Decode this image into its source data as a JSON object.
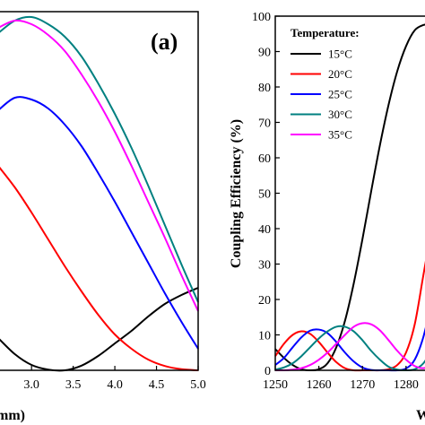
{
  "chart_data": [
    {
      "type": "line",
      "panel_label": "(a)",
      "xlabel": "mm)",
      "ylabel": "",
      "xlim": [
        2.6,
        5.0
      ],
      "ylim": [
        0,
        100
      ],
      "x_ticks": [
        "3.0",
        "3.5",
        "4.0",
        "4.5",
        "5.0"
      ],
      "x": [
        2.6,
        2.8,
        3.0,
        3.2,
        3.4,
        3.6,
        3.8,
        4.0,
        4.2,
        4.4,
        4.6,
        4.8,
        5.0
      ],
      "series": [
        {
          "color": "#000000",
          "values": [
            9,
            4.5,
            1.5,
            0.2,
            0,
            1.3,
            4,
            7.5,
            11,
            15,
            18.5,
            21,
            23
          ]
        },
        {
          "color": "#ff0000",
          "values": [
            57,
            51,
            44,
            36.5,
            29,
            22,
            15.5,
            10,
            6,
            3,
            1.2,
            0.3,
            0
          ]
        },
        {
          "color": "#0000ff",
          "values": [
            72.5,
            76,
            75.5,
            73,
            68.5,
            62.5,
            55,
            47,
            38.5,
            30,
            21.5,
            13.5,
            6
          ]
        },
        {
          "color": "#008080",
          "values": [
            94,
            97.5,
            98.5,
            96.5,
            93,
            87.5,
            80,
            71.5,
            62,
            51.5,
            40.5,
            29.5,
            19
          ]
        },
        {
          "color": "#ff00ff",
          "values": [
            95.5,
            97.5,
            96.5,
            93.5,
            89,
            82.5,
            75,
            66.5,
            57,
            47,
            37,
            26.5,
            16.5
          ]
        }
      ]
    },
    {
      "type": "line",
      "ylabel": "Coupling Efficiency (%)",
      "xlabel": "W",
      "xlim": [
        1250,
        1286
      ],
      "ylim": [
        0,
        100
      ],
      "x_ticks": [
        "1250",
        "1260",
        "1270",
        "1280"
      ],
      "y_ticks": [
        "0",
        "10",
        "20",
        "30",
        "40",
        "50",
        "60",
        "70",
        "80",
        "90",
        "100"
      ],
      "legend": {
        "title": "Temperature:",
        "placement": "top-right",
        "entries": [
          "15°C",
          "20°C",
          "25°C",
          "30°C",
          "35°C"
        ]
      },
      "series": [
        {
          "label": "15°C",
          "color": "#000000",
          "x": [
            1250,
            1252,
            1254,
            1256,
            1258,
            1260,
            1262,
            1264,
            1266,
            1268,
            1270,
            1272,
            1274,
            1276,
            1278,
            1280,
            1282,
            1284,
            1285,
            1286
          ],
          "values": [
            6,
            3.5,
            1.5,
            0.3,
            0,
            0.3,
            2,
            6.5,
            14,
            24.5,
            37,
            50.5,
            63.5,
            75,
            84.5,
            91.5,
            96,
            97.5,
            97.5,
            97
          ]
        },
        {
          "label": "20°C",
          "color": "#ff0000",
          "x": [
            1250,
            1252,
            1254,
            1256,
            1258,
            1260,
            1262,
            1264,
            1266,
            1268,
            1270,
            1272,
            1274,
            1276,
            1278,
            1280,
            1282,
            1284,
            1286
          ],
          "values": [
            4,
            7.5,
            10,
            11,
            10.3,
            8,
            5,
            2.3,
            0.6,
            0,
            0,
            0,
            0,
            0.3,
            1.5,
            5,
            13,
            27,
            41
          ]
        },
        {
          "label": "25°C",
          "color": "#0000ff",
          "x": [
            1250,
            1252,
            1254,
            1256,
            1258,
            1260,
            1262,
            1264,
            1266,
            1268,
            1270,
            1272,
            1274,
            1276,
            1278,
            1280,
            1282,
            1284,
            1286
          ],
          "values": [
            1.5,
            3.5,
            6.5,
            9.3,
            11.2,
            11.5,
            10.5,
            8,
            5,
            2.5,
            0.8,
            0.1,
            0,
            0,
            0,
            0.5,
            3,
            9.5,
            20
          ]
        },
        {
          "label": "30°C",
          "color": "#008080",
          "x": [
            1250,
            1252,
            1254,
            1256,
            1258,
            1260,
            1262,
            1264,
            1266,
            1268,
            1270,
            1272,
            1274,
            1276,
            1278,
            1280,
            1282,
            1284,
            1286
          ],
          "values": [
            0.2,
            0.8,
            2,
            4,
            6.5,
            9,
            11,
            12.3,
            12.3,
            11,
            8.5,
            5.5,
            3,
            1,
            0.2,
            0,
            0.3,
            2,
            6
          ]
        },
        {
          "label": "35°C",
          "color": "#ff00ff",
          "x": [
            1250,
            1252,
            1254,
            1256,
            1258,
            1260,
            1262,
            1264,
            1266,
            1268,
            1270,
            1272,
            1274,
            1276,
            1278,
            1280,
            1282,
            1284,
            1286
          ],
          "values": [
            0,
            0,
            0.2,
            0.6,
            1.5,
            3,
            5,
            7.5,
            10,
            12.3,
            13.3,
            13,
            11.3,
            8.5,
            5.5,
            3,
            1.2,
            0.6,
            1.5
          ]
        }
      ]
    }
  ]
}
